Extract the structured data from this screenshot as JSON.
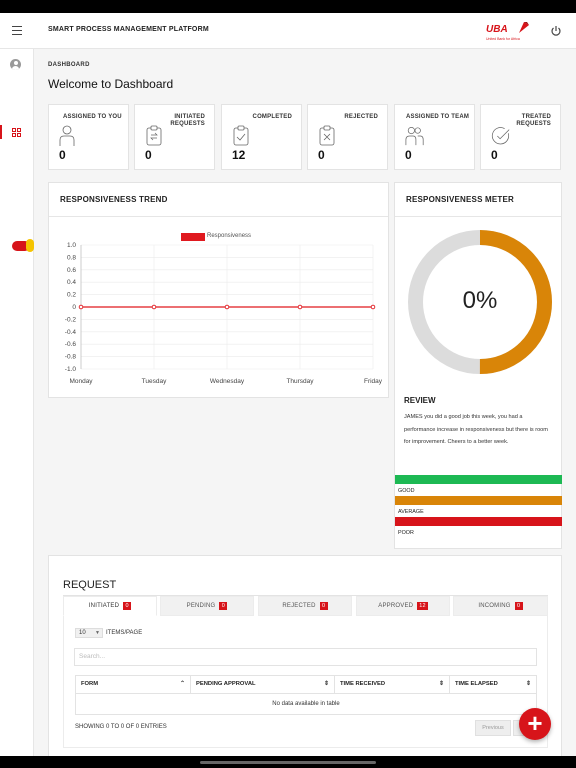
{
  "header": {
    "title": "SMART PROCESS MANAGEMENT PLATFORM",
    "logo_text": "UBA",
    "logo_subtext": "United Bank for Africa"
  },
  "page": {
    "breadcrumb": "DASHBOARD",
    "title": "Welcome to Dashboard"
  },
  "stats": [
    {
      "label": "ASSIGNED TO YOU",
      "value": "0",
      "icon": "user-icon"
    },
    {
      "label": "INITIATED REQUESTS",
      "value": "0",
      "icon": "clipboard-icon"
    },
    {
      "label": "COMPLETED",
      "value": "12",
      "icon": "clipboard-check-icon"
    },
    {
      "label": "REJECTED",
      "value": "0",
      "icon": "clipboard-x-icon"
    },
    {
      "label": "ASSIGNED TO TEAM",
      "value": "0",
      "icon": "team-icon"
    },
    {
      "label": "TREATED REQUESTS",
      "value": "0",
      "icon": "check-circle-icon"
    }
  ],
  "trend": {
    "title": "RESPONSIVENESS TREND"
  },
  "chart_data": {
    "type": "line",
    "categories": [
      "Monday",
      "Tuesday",
      "Wednesday",
      "Thursday",
      "Friday"
    ],
    "series": [
      {
        "name": "Responsiveness",
        "values": [
          0,
          0,
          0,
          0,
          0
        ],
        "color": "#e0191f"
      }
    ],
    "yticks": [
      "1.0",
      "0.8",
      "0.6",
      "0.4",
      "0.2",
      "0",
      "-0.2",
      "-0.4",
      "-0.6",
      "-0.8",
      "-1.0"
    ],
    "ylim": [
      -1,
      1
    ],
    "grid": true,
    "legend": "top"
  },
  "meter": {
    "title": "RESPONSIVENESS METER",
    "percent_label": "0%",
    "arc_fraction": 0.5,
    "review_title": "REVIEW",
    "review_text": "JAMES you did a good job this week, you had a performance increase in responsiveness but there is room for improvement. Cheers to a better week.",
    "levels": [
      {
        "label": "GOOD",
        "color": "#1db954"
      },
      {
        "label": "AVERAGE",
        "color": "#d98508"
      },
      {
        "label": "POOR",
        "color": "#d7141a"
      }
    ]
  },
  "request": {
    "title": "REQUEST",
    "tabs": [
      {
        "label": "INITIATED",
        "count": "0"
      },
      {
        "label": "PENDING",
        "count": "0"
      },
      {
        "label": "REJECTED",
        "count": "0"
      },
      {
        "label": "APPROVED",
        "count": "12"
      },
      {
        "label": "INCOMING",
        "count": "0"
      }
    ],
    "per_page_value": "10",
    "per_page_label": "ITEMS/PAGE",
    "search_placeholder": "Search...",
    "columns": [
      "FORM",
      "PENDING APPROVAL",
      "TIME RECEIVED",
      "TIME ELAPSED"
    ],
    "empty_text": "No data available in table",
    "showing_text": "SHOWING 0 TO 0 OF 0 ENTRIES",
    "prev_label": "Previous",
    "next_label": "Next"
  },
  "colors": {
    "brand": "#d7141a",
    "meter_arc": "#d98508",
    "meter_track": "#dcdcdc"
  }
}
